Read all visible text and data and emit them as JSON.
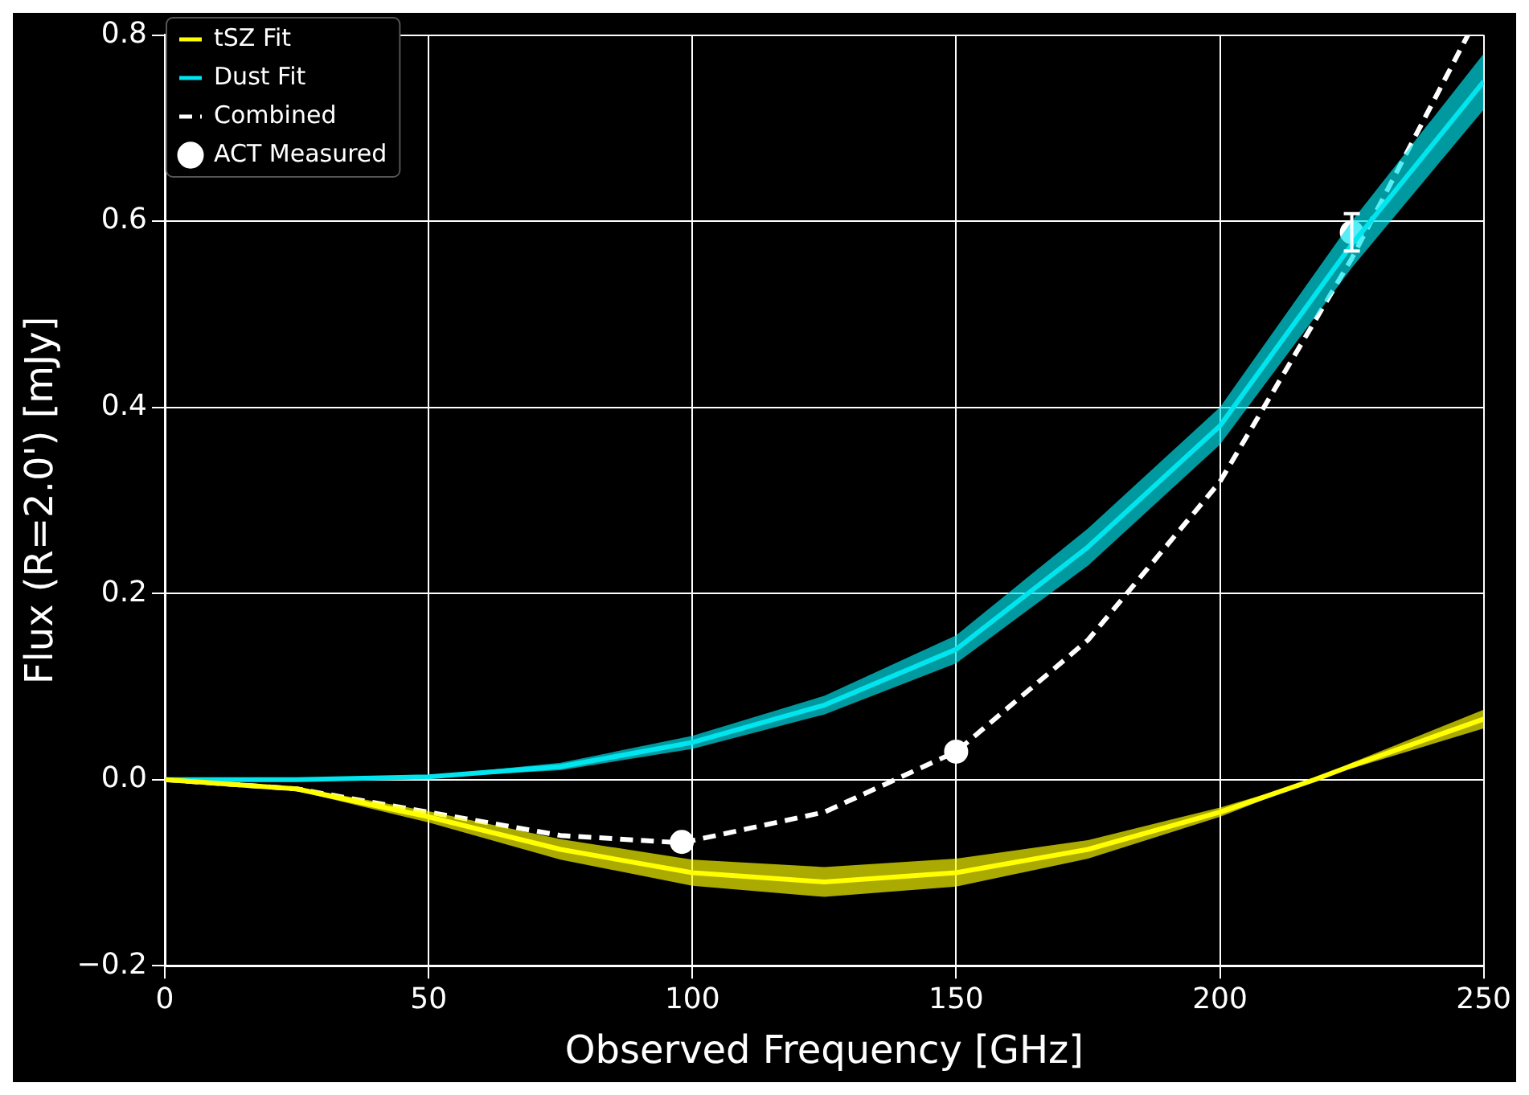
{
  "chart_data": {
    "type": "line",
    "xlabel": "Observed Frequency [GHz]",
    "ylabel": "Flux (R=2.0') [mJy]",
    "xlim": [
      0,
      250
    ],
    "xticks": [
      0,
      50,
      100,
      150,
      200,
      250
    ],
    "ylim": [
      -0.2,
      0.8
    ],
    "yticks": [
      {
        "value": -0.2,
        "label": "−0.2"
      },
      {
        "value": 0,
        "label": "0.0"
      },
      {
        "value": 0.2,
        "label": "0.2"
      },
      {
        "value": 0.4,
        "label": "0.4"
      },
      {
        "value": 0.6,
        "label": "0.6"
      },
      {
        "value": 0.8,
        "label": "0.8"
      }
    ],
    "grid": true,
    "legend": "top left",
    "series": [
      {
        "name": "tSZ Fit",
        "color": "#ffff00",
        "x": [
          0,
          25,
          50,
          75,
          100,
          125,
          150,
          175,
          200,
          218,
          225,
          250
        ],
        "values": [
          0,
          -0.01,
          -0.04,
          -0.075,
          -0.1,
          -0.11,
          -0.1,
          -0.075,
          -0.035,
          0,
          0.015,
          0.065
        ],
        "lower": [
          0,
          -0.012,
          -0.046,
          -0.086,
          -0.114,
          -0.126,
          -0.115,
          -0.085,
          -0.04,
          0,
          0.012,
          0.055
        ],
        "upper": [
          0,
          -0.008,
          -0.034,
          -0.064,
          -0.086,
          -0.094,
          -0.085,
          -0.065,
          -0.03,
          0,
          0.018,
          0.075
        ]
      },
      {
        "name": "Dust Fit",
        "color": "#00e5ee",
        "x": [
          0,
          25,
          50,
          75,
          100,
          125,
          150,
          175,
          200,
          225,
          250
        ],
        "values": [
          0,
          0,
          0.003,
          0.014,
          0.04,
          0.08,
          0.14,
          0.25,
          0.38,
          0.575,
          0.75
        ],
        "lower": [
          0,
          0,
          0.002,
          0.01,
          0.033,
          0.07,
          0.125,
          0.23,
          0.36,
          0.55,
          0.72
        ],
        "upper": [
          0,
          0,
          0.004,
          0.018,
          0.047,
          0.09,
          0.155,
          0.27,
          0.4,
          0.6,
          0.78
        ]
      },
      {
        "name": "Combined",
        "color": "#ffffff",
        "line_style": "dashed",
        "x": [
          0,
          25,
          50,
          75,
          98,
          125,
          150,
          175,
          200,
          225,
          247
        ],
        "values": [
          0,
          -0.01,
          -0.035,
          -0.06,
          -0.068,
          -0.035,
          0.03,
          0.15,
          0.32,
          0.56,
          0.8
        ]
      },
      {
        "name": "ACT Measured",
        "type": "scatter",
        "color": "#ffffff",
        "marker": "circle",
        "x": [
          98,
          150,
          225
        ],
        "values": [
          -0.067,
          0.03,
          0.588
        ],
        "errors": [
          0.008,
          0.008,
          0.02
        ]
      }
    ]
  }
}
